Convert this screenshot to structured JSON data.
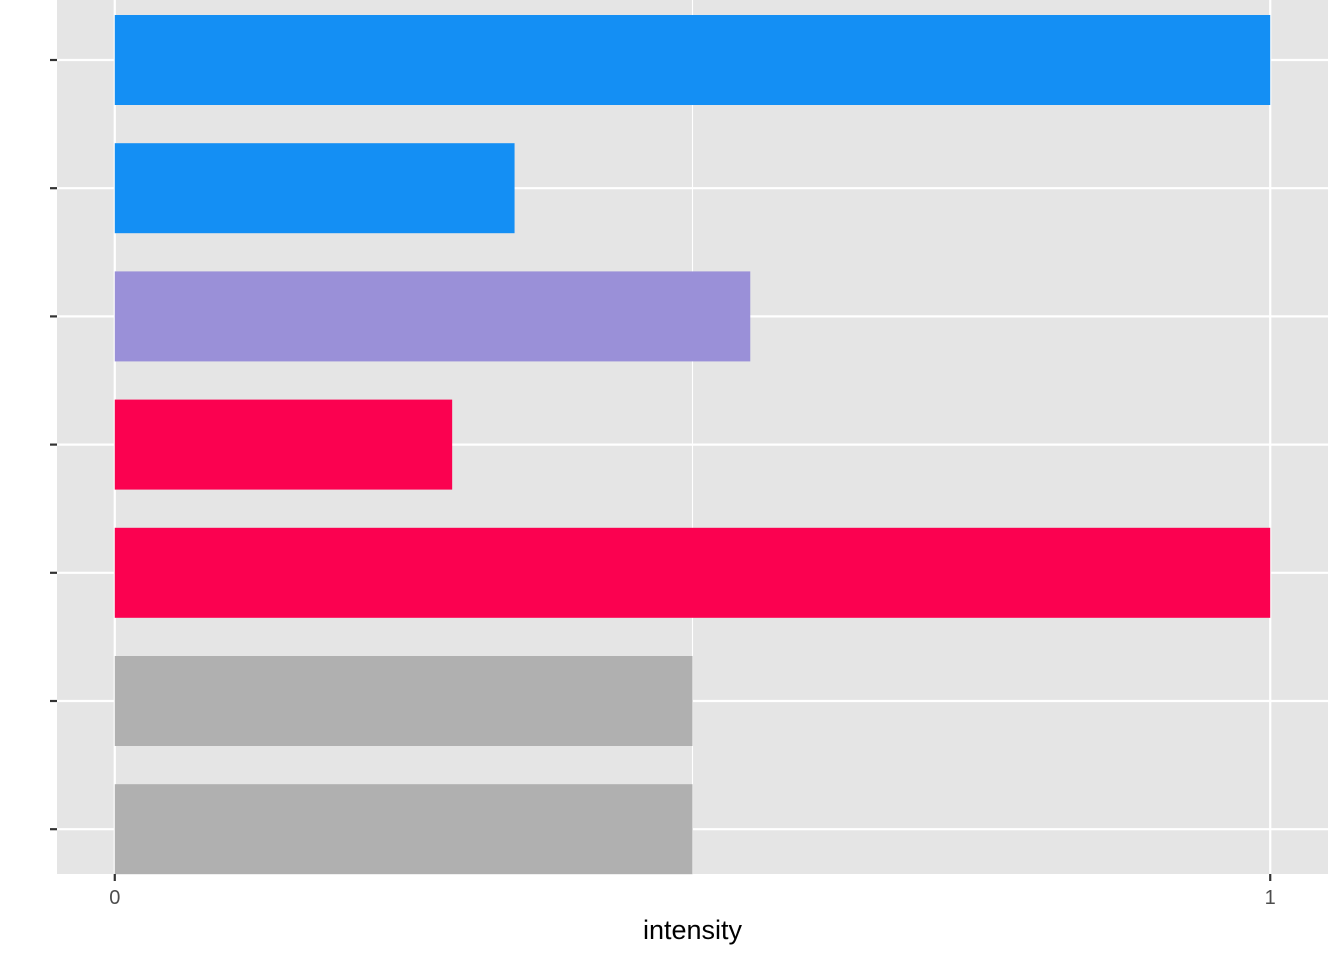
{
  "chart_data": {
    "type": "bar",
    "orientation": "horizontal",
    "categories": [
      "",
      "",
      "",
      "",
      "",
      "",
      ""
    ],
    "values": [
      1.0,
      0.346,
      0.55,
      0.292,
      1.0,
      0.5,
      0.5
    ],
    "bar_colors": [
      "#148FF4",
      "#148FF4",
      "#9A90D8",
      "#FB0150",
      "#FB0150",
      "#B0B0B0",
      "#B0B0B0"
    ],
    "xlabel": "intensity",
    "ylabel": "",
    "xlim": [
      -0.05,
      1.05
    ],
    "xticks": [
      0,
      1
    ],
    "xtick_labels": [
      "0",
      "1"
    ],
    "grid": true,
    "panel_color": "#E5E5E5",
    "gridline_color": "#FFFFFF"
  }
}
